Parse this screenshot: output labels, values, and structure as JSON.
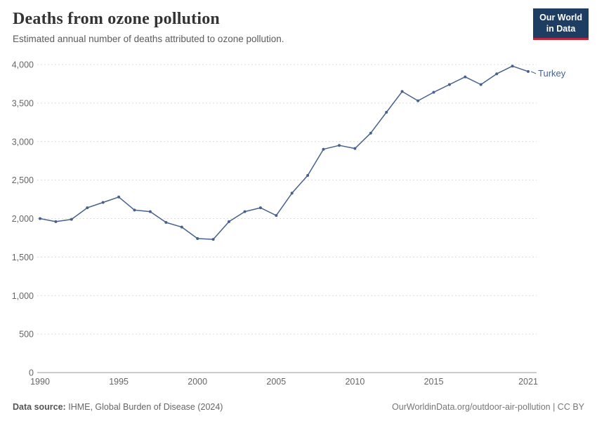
{
  "header": {
    "title": "Deaths from ozone pollution",
    "subtitle": "Estimated annual number of deaths attributed to ozone pollution.",
    "logo": {
      "line1": "Our World",
      "line2": "in Data"
    }
  },
  "chart_data": {
    "type": "line",
    "title": "Deaths from ozone pollution",
    "xlabel": "",
    "ylabel": "",
    "x": [
      1990,
      1991,
      1992,
      1993,
      1994,
      1995,
      1996,
      1997,
      1998,
      1999,
      2000,
      2001,
      2002,
      2003,
      2004,
      2005,
      2006,
      2007,
      2008,
      2009,
      2010,
      2011,
      2012,
      2013,
      2014,
      2015,
      2016,
      2017,
      2018,
      2019,
      2020,
      2021
    ],
    "series": [
      {
        "name": "Turkey",
        "color": "#47618c",
        "values": [
          2000,
          1960,
          1990,
          2140,
          2210,
          2280,
          2110,
          2090,
          1950,
          1890,
          1740,
          1730,
          1960,
          2090,
          2140,
          2040,
          2330,
          2560,
          2900,
          2950,
          2910,
          3110,
          3380,
          3650,
          3530,
          3640,
          3740,
          3840,
          3740,
          3880,
          3980,
          3910
        ]
      }
    ],
    "ylim": [
      0,
      4000
    ],
    "yticks": [
      0,
      500,
      1000,
      1500,
      2000,
      2500,
      3000,
      3500,
      4000
    ],
    "xticks": [
      1990,
      1995,
      2000,
      2005,
      2010,
      2015,
      2021
    ],
    "grid": "horizontal-dashed",
    "legend": "end-of-line-label"
  },
  "colors": {
    "logo_bg": "#1d3d63",
    "logo_stripe": "#c0273d",
    "grid": "#dcdcdc",
    "axis": "#999999",
    "tick_text": "#666666"
  },
  "footer": {
    "source_label": "Data source:",
    "source": "IHME, Global Burden of Disease (2024)",
    "credit": "OurWorldinData.org/outdoor-air-pollution | CC BY"
  }
}
